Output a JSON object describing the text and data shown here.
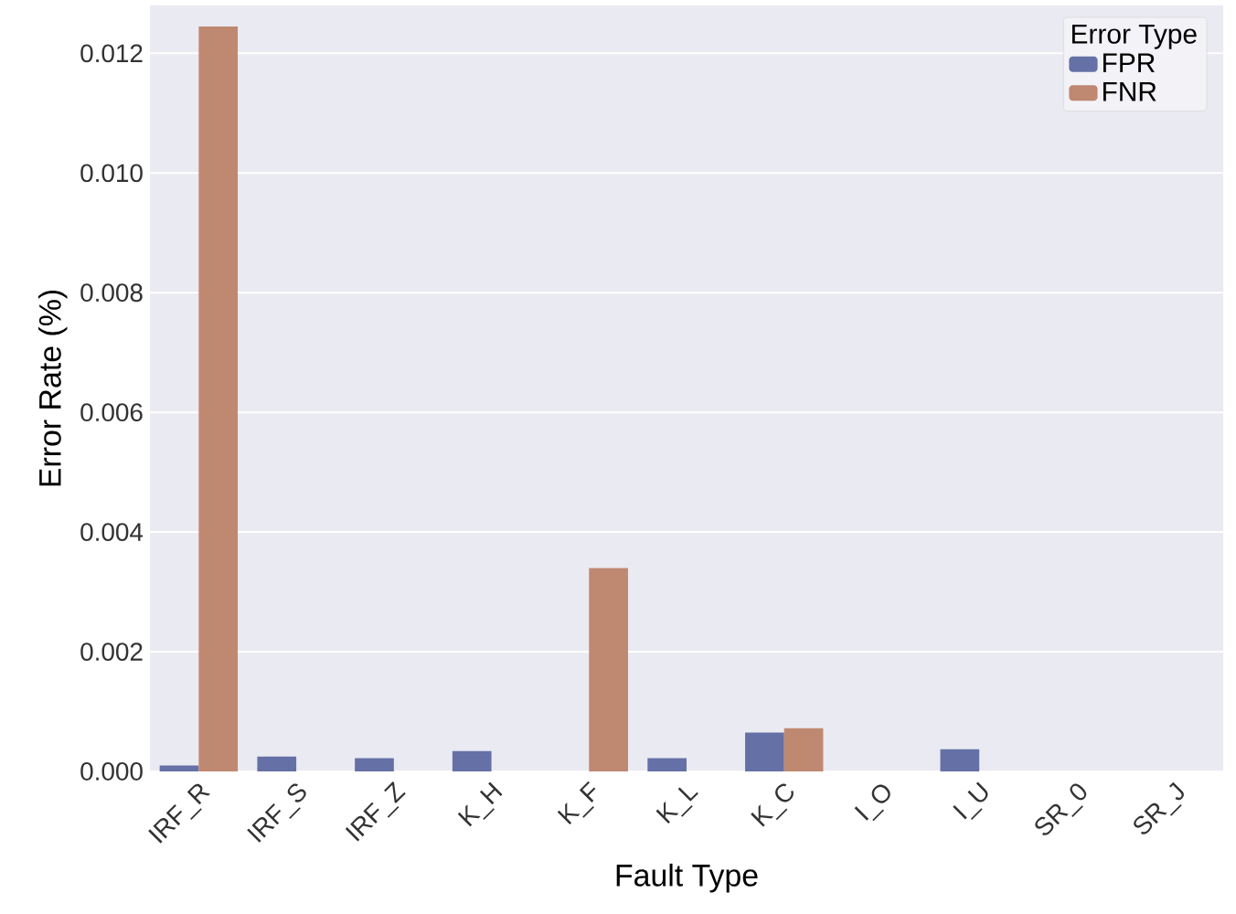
{
  "chart_data": {
    "type": "bar",
    "xlabel": "Fault Type",
    "ylabel": "Error Rate (%)",
    "legend_title": "Error Type",
    "categories": [
      "IRF_R",
      "IRF_S",
      "IRF_Z",
      "K_H",
      "K_F",
      "K_L",
      "K_C",
      "I_O",
      "I_U",
      "SR_0",
      "SR_J"
    ],
    "series": [
      {
        "name": "FPR",
        "color": "#6571a6",
        "values": [
          0.0001,
          0.00025,
          0.00022,
          0.00034,
          0,
          0.00022,
          0.00065,
          0,
          0.00037,
          0,
          0
        ]
      },
      {
        "name": "FNR",
        "color": "#bf8870",
        "values": [
          0.01245,
          0,
          0,
          0,
          0.0034,
          0,
          0.00072,
          0,
          0,
          0,
          0
        ]
      }
    ],
    "ylim": [
      0,
      0.0128
    ],
    "yticks": [
      {
        "value": 0,
        "label": "0.000"
      },
      {
        "value": 0.002,
        "label": "0.002"
      },
      {
        "value": 0.004,
        "label": "0.004"
      },
      {
        "value": 0.006,
        "label": "0.006"
      },
      {
        "value": 0.008,
        "label": "0.008"
      },
      {
        "value": 0.01,
        "label": "0.010"
      },
      {
        "value": 0.012,
        "label": "0.012"
      }
    ],
    "grid": "y",
    "legend": "top right"
  }
}
